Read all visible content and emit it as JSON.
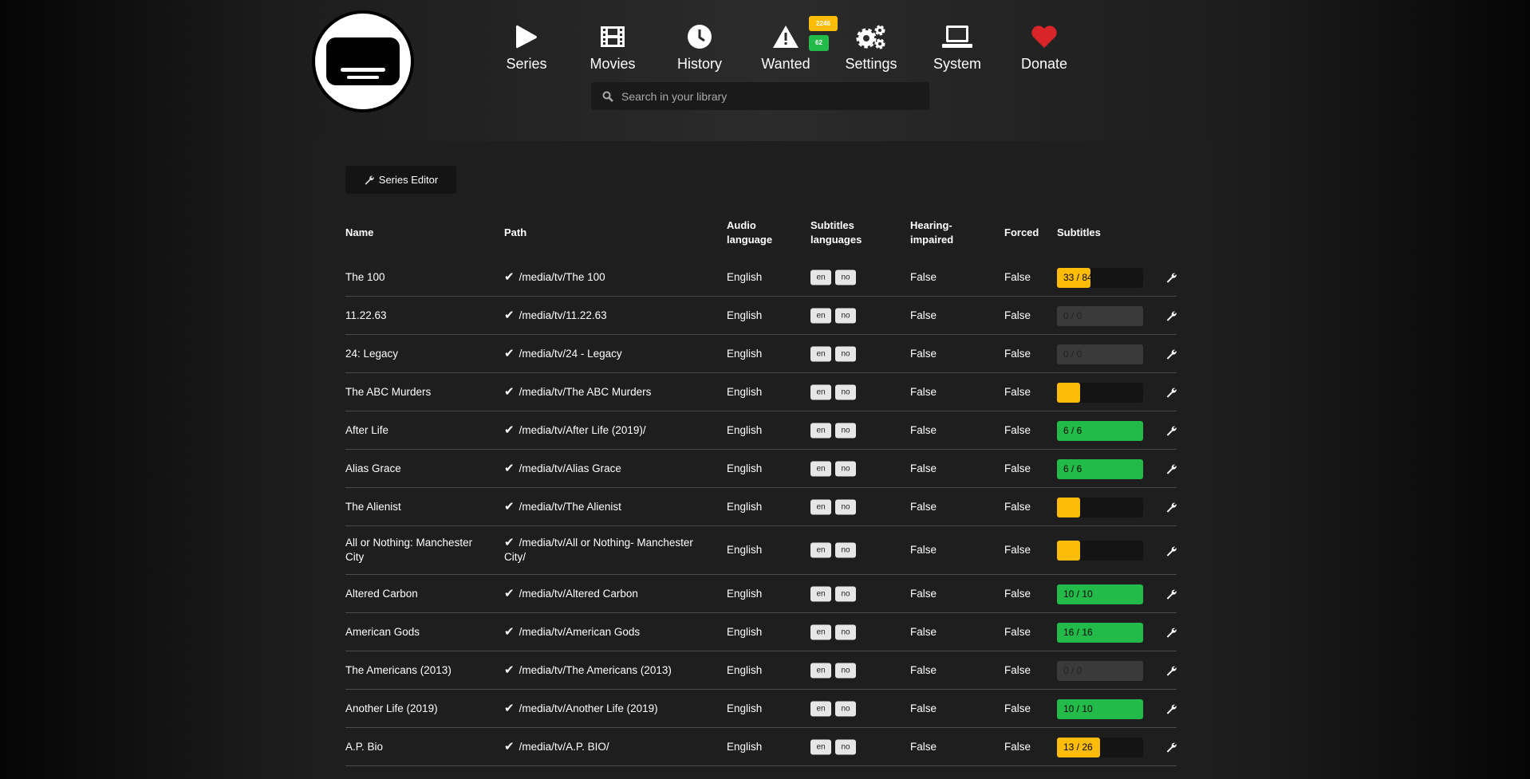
{
  "nav": {
    "items": [
      {
        "label": "Series",
        "icon": "play-icon"
      },
      {
        "label": "Movies",
        "icon": "film-icon"
      },
      {
        "label": "History",
        "icon": "clock-icon"
      },
      {
        "label": "Wanted",
        "icon": "warning-icon",
        "badges": {
          "series": "2246",
          "movies": "62"
        }
      },
      {
        "label": "Settings",
        "icon": "gears-icon"
      },
      {
        "label": "System",
        "icon": "laptop-icon"
      },
      {
        "label": "Donate",
        "icon": "heart-icon"
      }
    ]
  },
  "search": {
    "placeholder": "Search in your library",
    "value": ""
  },
  "toolbar": {
    "series_editor": "Series Editor"
  },
  "colors": {
    "yellow": "#fcbc07",
    "green": "#22bb4a",
    "donate": "#d9252a",
    "empty": "#3a3a3a"
  },
  "table": {
    "headers": [
      "Name",
      "Path",
      "Audio language",
      "Subtitles languages",
      "Hearing-impaired",
      "Forced",
      "Subtitles"
    ],
    "rows": [
      {
        "name": "The 100",
        "path": "/media/tv/The 100",
        "audio": "English",
        "subs": [
          "en",
          "no"
        ],
        "hi": "False",
        "forced": "False",
        "progress": "33 / 84",
        "fraction": 0.39
      },
      {
        "name": "11.22.63",
        "path": "/media/tv/11.22.63",
        "audio": "English",
        "subs": [
          "en",
          "no"
        ],
        "hi": "False",
        "forced": "False",
        "progress": "0 / 0",
        "fraction": 0
      },
      {
        "name": "24: Legacy",
        "path": "/media/tv/24 - Legacy",
        "audio": "English",
        "subs": [
          "en",
          "no"
        ],
        "hi": "False",
        "forced": "False",
        "progress": "0 / 0",
        "fraction": 0
      },
      {
        "name": "The ABC Murders",
        "path": "/media/tv/The ABC Murders",
        "audio": "English",
        "subs": [
          "en",
          "no"
        ],
        "hi": "False",
        "forced": "False",
        "progress": "",
        "fraction": 0.27
      },
      {
        "name": "After Life",
        "path": "/media/tv/After Life (2019)/",
        "audio": "English",
        "subs": [
          "en",
          "no"
        ],
        "hi": "False",
        "forced": "False",
        "progress": "6 / 6",
        "fraction": 1
      },
      {
        "name": "Alias Grace",
        "path": "/media/tv/Alias Grace",
        "audio": "English",
        "subs": [
          "en",
          "no"
        ],
        "hi": "False",
        "forced": "False",
        "progress": "6 / 6",
        "fraction": 1
      },
      {
        "name": "The Alienist",
        "path": "/media/tv/The Alienist",
        "audio": "English",
        "subs": [
          "en",
          "no"
        ],
        "hi": "False",
        "forced": "False",
        "progress": "",
        "fraction": 0.27
      },
      {
        "name": "All or Nothing: Manchester City",
        "path": "/media/tv/All or Nothing- Manchester City/",
        "audio": "English",
        "subs": [
          "en",
          "no"
        ],
        "hi": "False",
        "forced": "False",
        "progress": "",
        "fraction": 0.27
      },
      {
        "name": "Altered Carbon",
        "path": "/media/tv/Altered Carbon",
        "audio": "English",
        "subs": [
          "en",
          "no"
        ],
        "hi": "False",
        "forced": "False",
        "progress": "10 / 10",
        "fraction": 1
      },
      {
        "name": "American Gods",
        "path": "/media/tv/American Gods",
        "audio": "English",
        "subs": [
          "en",
          "no"
        ],
        "hi": "False",
        "forced": "False",
        "progress": "16 / 16",
        "fraction": 1
      },
      {
        "name": "The Americans (2013)",
        "path": "/media/tv/The Americans (2013)",
        "audio": "English",
        "subs": [
          "en",
          "no"
        ],
        "hi": "False",
        "forced": "False",
        "progress": "0 / 0",
        "fraction": 0
      },
      {
        "name": "Another Life (2019)",
        "path": "/media/tv/Another Life (2019)",
        "audio": "English",
        "subs": [
          "en",
          "no"
        ],
        "hi": "False",
        "forced": "False",
        "progress": "10 / 10",
        "fraction": 1
      },
      {
        "name": "A.P. Bio",
        "path": "/media/tv/A.P. BIO/",
        "audio": "English",
        "subs": [
          "en",
          "no"
        ],
        "hi": "False",
        "forced": "False",
        "progress": "13 / 26",
        "fraction": 0.5
      }
    ]
  }
}
